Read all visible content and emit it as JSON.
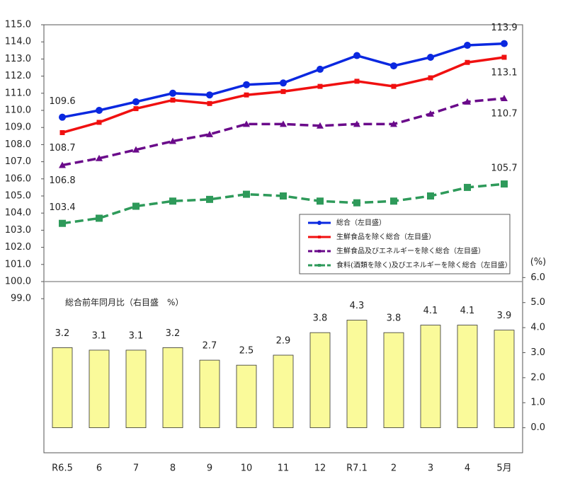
{
  "chart_data": {
    "type": "line-bar",
    "categories": [
      "R6.5",
      "6",
      "7",
      "8",
      "9",
      "10",
      "11",
      "12",
      "R7.1",
      "2",
      "3",
      "4",
      "5月"
    ],
    "ylim": [
      90,
      115
    ],
    "yticks": [
      {
        "value": 99,
        "label": "99.0"
      },
      {
        "value": 100,
        "label": "100.0"
      },
      {
        "value": 101,
        "label": "101.0"
      },
      {
        "value": 102,
        "label": "102.0"
      },
      {
        "value": 103,
        "label": "103.0"
      },
      {
        "value": 104,
        "label": "104.0"
      },
      {
        "value": 105,
        "label": "105.0"
      },
      {
        "value": 106,
        "label": "106.0"
      },
      {
        "value": 107,
        "label": "107.0"
      },
      {
        "value": 108,
        "label": "108.0"
      },
      {
        "value": 109,
        "label": "109.0"
      },
      {
        "value": 110,
        "label": "110.0"
      },
      {
        "value": 111,
        "label": "111.0"
      },
      {
        "value": 112,
        "label": "112.0"
      },
      {
        "value": 113,
        "label": "113.0"
      },
      {
        "value": 114,
        "label": "114.0"
      },
      {
        "value": 115,
        "label": "115.0"
      }
    ],
    "y2lim": [
      -1,
      16.1
    ],
    "y2ticks": [
      {
        "value": 0,
        "label": "0.0"
      },
      {
        "value": 1,
        "label": "1.0"
      },
      {
        "value": 2,
        "label": "2.0"
      },
      {
        "value": 3,
        "label": "3.0"
      },
      {
        "value": 4,
        "label": "4.0"
      },
      {
        "value": 5,
        "label": "5.0"
      },
      {
        "value": 6,
        "label": "6.0"
      }
    ],
    "y2label": "(%)",
    "divider": 100,
    "legend": "lower-right",
    "series": [
      {
        "name": "総合（左目盛）",
        "type": "line",
        "color": "#0a28e0",
        "marker": "circle",
        "dash": false,
        "label_color": "#2a3ccc",
        "label_position": "above",
        "data_labels": "ends",
        "values": [
          109.6,
          110.0,
          110.5,
          111.0,
          110.9,
          111.5,
          111.6,
          112.4,
          113.2,
          112.6,
          113.1,
          113.8,
          113.9
        ]
      },
      {
        "name": "生鮮食品を除く総合（左目盛）",
        "type": "line",
        "color": "#f01010",
        "marker": "square",
        "dash": false,
        "label_color": "#e03030",
        "label_position": "below",
        "data_labels": "ends",
        "values": [
          108.7,
          109.3,
          110.1,
          110.6,
          110.4,
          110.9,
          111.1,
          111.4,
          111.7,
          111.4,
          111.9,
          112.8,
          113.1
        ]
      },
      {
        "name": "生鮮食品及びエネルギーを除く総合（左目盛）",
        "type": "line",
        "color": "#6a0a8a",
        "marker": "triangle",
        "dash": true,
        "label_color": "#a0407a",
        "label_position": "below",
        "data_labels": "ends",
        "values": [
          106.8,
          107.2,
          107.7,
          108.2,
          108.6,
          109.2,
          109.2,
          109.1,
          109.2,
          109.2,
          109.8,
          110.5,
          110.7
        ]
      },
      {
        "name": "食料(酒類を除く)及びエネルギーを除く総合（左目盛）",
        "type": "line",
        "color": "#2e9a5a",
        "marker": "square",
        "dash": true,
        "label_color": "#2a8a8a",
        "label_position": "above",
        "data_labels": "ends",
        "values": [
          103.4,
          103.7,
          104.4,
          104.7,
          104.8,
          105.1,
          105.0,
          104.7,
          104.6,
          104.7,
          105.0,
          105.5,
          105.7
        ]
      },
      {
        "name": "総合前年同月比（右目盛　%）",
        "type": "bar",
        "axis": "y2",
        "color": "#fafa9a",
        "label_color": "#2a3ccc",
        "data_labels": "all",
        "values": [
          3.2,
          3.1,
          3.1,
          3.2,
          2.7,
          2.5,
          2.9,
          3.8,
          4.3,
          3.8,
          4.1,
          4.1,
          3.9
        ]
      }
    ]
  }
}
